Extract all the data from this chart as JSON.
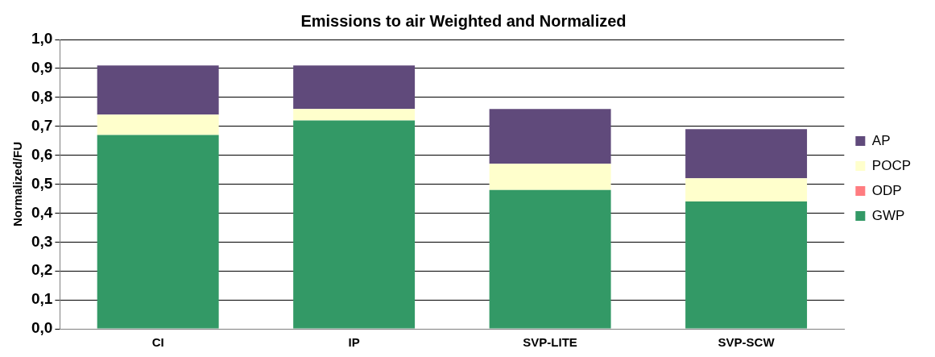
{
  "chart_data": {
    "type": "bar",
    "title": "Emissions to air Weighted and Normalized",
    "ylabel": "Normalized/FU",
    "categories": [
      "CI",
      "IP",
      "SVP-LITE",
      "SVP-SCW"
    ],
    "stacked": true,
    "series": [
      {
        "name": "GWP",
        "color": "#339966",
        "values": [
          0.67,
          0.72,
          0.48,
          0.44
        ]
      },
      {
        "name": "ODP",
        "color": "#ff7c80",
        "values": [
          0,
          0,
          0,
          0
        ]
      },
      {
        "name": "POCP",
        "color": "#ffffcc",
        "values": [
          0.07,
          0.04,
          0.09,
          0.08
        ]
      },
      {
        "name": "AP",
        "color": "#604a7b",
        "values": [
          0.17,
          0.15,
          0.19,
          0.17
        ]
      }
    ],
    "ylim": [
      0,
      1
    ],
    "yticks": [
      {
        "value": 0,
        "label": "0,0"
      },
      {
        "value": 0.1,
        "label": "0,1"
      },
      {
        "value": 0.2,
        "label": "0,2"
      },
      {
        "value": 0.3,
        "label": "0,3"
      },
      {
        "value": 0.4,
        "label": "0,4"
      },
      {
        "value": 0.5,
        "label": "0,5"
      },
      {
        "value": 0.6,
        "label": "0,6"
      },
      {
        "value": 0.7,
        "label": "0,7"
      },
      {
        "value": 0.8,
        "label": "0,8"
      },
      {
        "value": 0.9,
        "label": "0,9"
      },
      {
        "value": 1,
        "label": "1,0"
      }
    ],
    "grid": "y",
    "legend": "right"
  }
}
